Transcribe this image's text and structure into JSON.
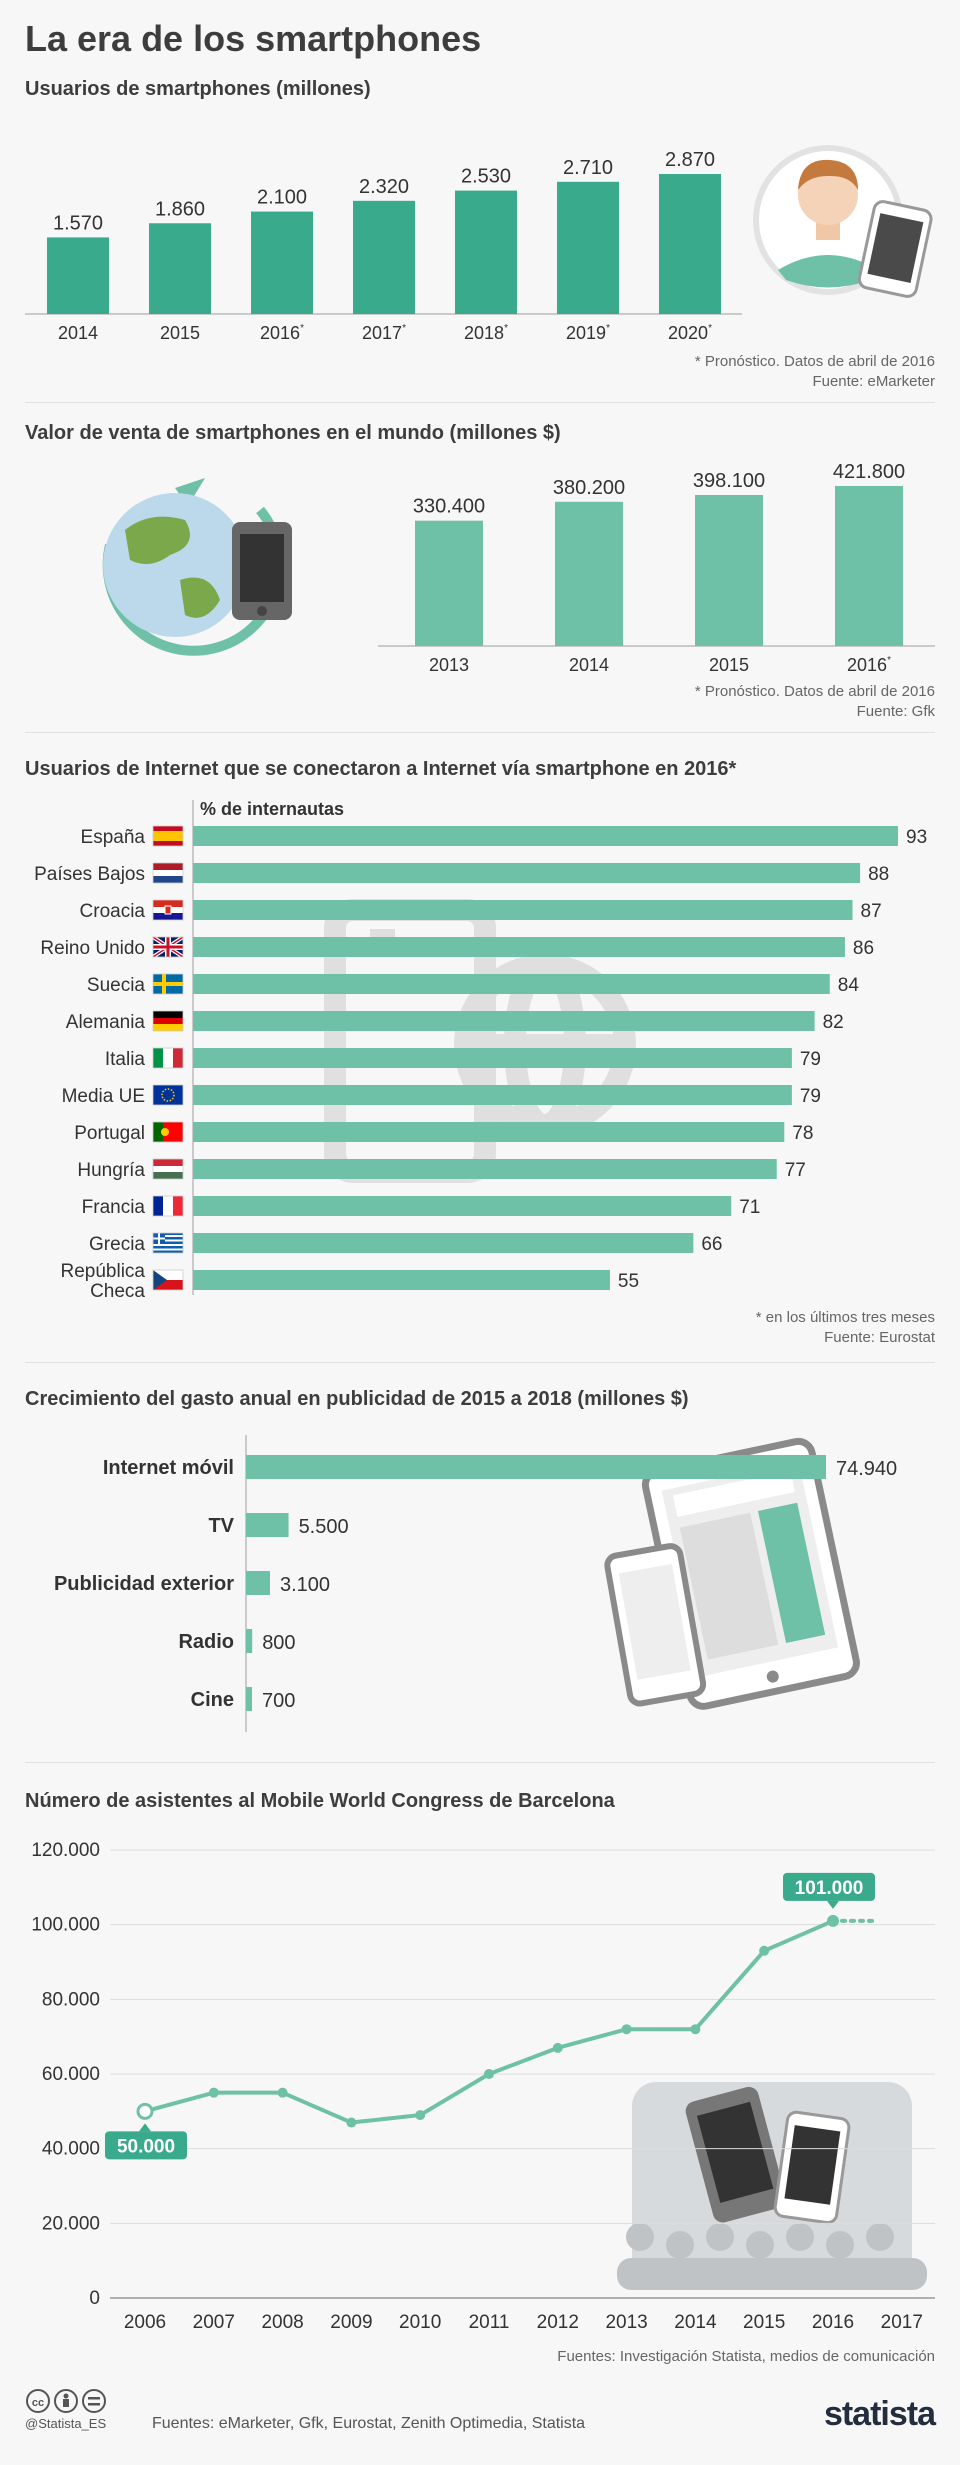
{
  "title": "La era de los smartphones",
  "colors": {
    "bar_dark": "#3aaa8d",
    "bar_light": "#6ec0a6",
    "line": "#6ec0a6",
    "label_bg": "#3aaa8d"
  },
  "chart_data": [
    {
      "type": "bar",
      "title": "Usuarios de smartphones (millones)",
      "categories": [
        "2014",
        "2015",
        "2016*",
        "2017*",
        "2018*",
        "2019*",
        "2020*"
      ],
      "values": [
        1570,
        1860,
        2100,
        2320,
        2530,
        2710,
        2870
      ],
      "value_labels": [
        "1.570",
        "1.860",
        "2.100",
        "2.320",
        "2.530",
        "2.710",
        "2.870"
      ],
      "note": "* Pronóstico. Datos de abril de 2016",
      "source": "Fuente: eMarketer"
    },
    {
      "type": "bar",
      "title": "Valor de venta de smartphones en el mundo (millones $)",
      "categories": [
        "2013",
        "2014",
        "2015",
        "2016*"
      ],
      "values": [
        330400,
        380200,
        398100,
        421800
      ],
      "value_labels": [
        "330.400",
        "380.200",
        "398.100",
        "421.800"
      ],
      "note": "* Pronóstico. Datos de abril de 2016",
      "source": "Fuente: Gfk"
    },
    {
      "type": "bar",
      "orientation": "horizontal",
      "title": "Usuarios de Internet que se conectaron a Internet vía smartphone en 2016*",
      "axis_label": "% de internautas",
      "categories": [
        "España",
        "Países Bajos",
        "Croacia",
        "Reino Unido",
        "Suecia",
        "Alemania",
        "Italia",
        "Media UE",
        "Portugal",
        "Hungría",
        "Francia",
        "Grecia",
        "República Checa"
      ],
      "values": [
        93,
        88,
        87,
        86,
        84,
        82,
        79,
        79,
        78,
        77,
        71,
        66,
        55
      ],
      "note": "* en los últimos tres meses",
      "source": "Fuente: Eurostat"
    },
    {
      "type": "bar",
      "orientation": "horizontal",
      "title": "Crecimiento del gasto anual en publicidad de 2015 a 2018 (millones $)",
      "categories": [
        "Internet móvil",
        "TV",
        "Publicidad exterior",
        "Radio",
        "Cine"
      ],
      "values": [
        74940,
        5500,
        3100,
        800,
        700
      ],
      "value_labels": [
        "74.940",
        "5.500",
        "3.100",
        "800",
        "700"
      ]
    },
    {
      "type": "line",
      "title": "Número de asistentes al Mobile World Congress de Barcelona",
      "x": [
        "2006",
        "2007",
        "2008",
        "2009",
        "2010",
        "2011",
        "2012",
        "2013",
        "2014",
        "2015",
        "2016",
        "2017"
      ],
      "y": [
        50000,
        55000,
        55000,
        47000,
        49000,
        60000,
        67000,
        72000,
        72000,
        93000,
        101000,
        null
      ],
      "ylim": [
        0,
        120000
      ],
      "yticks": [
        "0",
        "20.000",
        "40.000",
        "60.000",
        "80.000",
        "100.000",
        "120.000"
      ],
      "callouts": [
        "50.000",
        "101.000"
      ],
      "grid": true,
      "source": "Fuentes: Investigación Statista, medios de comunicación"
    }
  ],
  "footer": {
    "handle": "@Statista_ES",
    "sources": "Fuentes: eMarketer, Gfk, Eurostat, Zenith Optimedia, Statista",
    "brand": "statista"
  }
}
